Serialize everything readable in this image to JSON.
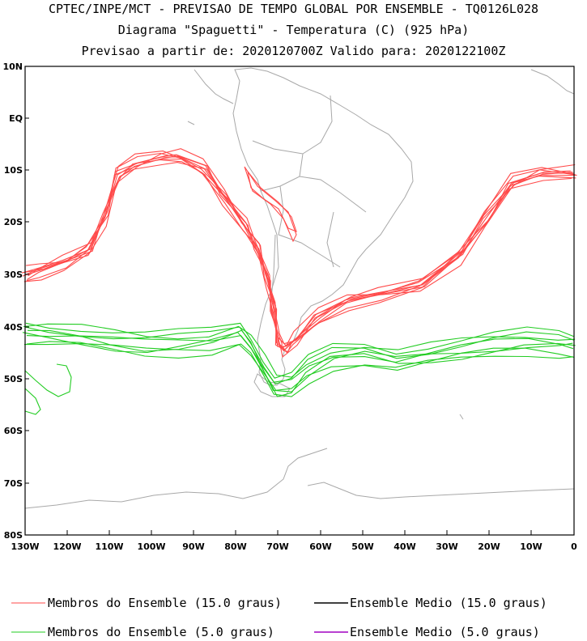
{
  "header": {
    "line1": "CPTEC/INPE/MCT - PREVISAO DE TEMPO GLOBAL POR ENSEMBLE - TQ0126L028",
    "line2": "Diagrama \"Spaguetti\" - Temperatura (C) (925 hPa)",
    "line3": "Previsao a partir de: 2020120700Z  Valido para: 2020122100Z"
  },
  "colors": {
    "members_15": "#ff4a4a",
    "members_5": "#22cc22",
    "mean_15": "#000000",
    "mean_5": "#a000c0",
    "coast": "#a8a8a8"
  },
  "axes": {
    "lat_labels": [
      "10N",
      "EQ",
      "10S",
      "20S",
      "30S",
      "40S",
      "50S",
      "60S",
      "70S",
      "80S"
    ],
    "lon_labels": [
      "130W",
      "120W",
      "110W",
      "100W",
      "90W",
      "80W",
      "70W",
      "60W",
      "50W",
      "40W",
      "30W",
      "20W",
      "10W",
      "0"
    ]
  },
  "legend": {
    "members_15": "Membros do Ensemble (15.0 graus)",
    "mean_15": "Ensemble Medio (15.0 graus)",
    "members_5": "Membros do Ensemble (5.0 graus)",
    "mean_5": "Ensemble Medio (5.0 graus)"
  }
}
